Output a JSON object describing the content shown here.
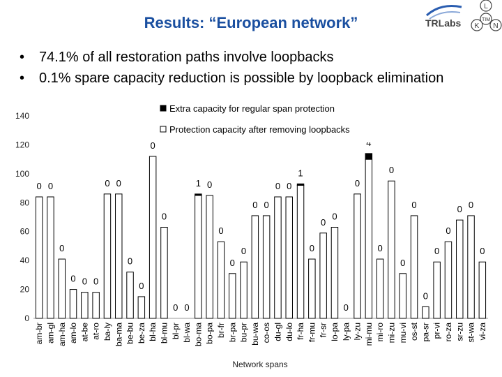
{
  "title": "Results: “European network”",
  "logo": {
    "name": "TRLabs",
    "seal_letters": [
      "L",
      "TIM",
      "K",
      "N"
    ]
  },
  "bullets": [
    "74.1% of all restoration paths involve loopbacks",
    "0.1% spare capacity reduction is possible by loopback elimination"
  ],
  "chart_data": {
    "type": "bar",
    "xlabel": "Network spans",
    "ylabel": "",
    "ylim": [
      0,
      140
    ],
    "yticks": [
      0,
      20,
      40,
      60,
      80,
      100,
      120,
      140
    ],
    "grid": false,
    "legend_placement": "top",
    "colors": {
      "extra": "#000000",
      "protection_fill": "#ffffff",
      "protection_edge": "#000000"
    },
    "categories": [
      "am-br",
      "am-gl",
      "am-ha",
      "am-lo",
      "at-be",
      "at-ro",
      "ba-ly",
      "ba-ma",
      "be-bu",
      "be-za",
      "bl-ha",
      "bl-mu",
      "bl-pr",
      "bl-wa",
      "bo-ma",
      "bo-pa",
      "br-fr",
      "br-pa",
      "bu-pr",
      "bu-wa",
      "co-os",
      "du-gl",
      "du-lo",
      "fr-ha",
      "fr-mu",
      "fr-sr",
      "lo-pa",
      "ly-pa",
      "ly-zu",
      "mi-mu",
      "mi-ro",
      "mi-zu",
      "mu-vi",
      "os-st",
      "pa-sr",
      "pr-vi",
      "ro-za",
      "sr-zu",
      "st-wa",
      "vi-za"
    ],
    "series": [
      {
        "name": "Extra capacity for regular span protection",
        "values": [
          0,
          0,
          0,
          0,
          0,
          0,
          0,
          0,
          0,
          0,
          0,
          0,
          0,
          0,
          1,
          0,
          0,
          0,
          0,
          0,
          0,
          0,
          0,
          1,
          0,
          0,
          0,
          0,
          0,
          4,
          0,
          0,
          0,
          0,
          0,
          0,
          0,
          0,
          0,
          0
        ]
      },
      {
        "name": "Protection capacity after removing loopbacks",
        "values": [
          84,
          84,
          41,
          20,
          18,
          18,
          86,
          86,
          32,
          15,
          112,
          63,
          0,
          0,
          85,
          85,
          53,
          31,
          39,
          71,
          71,
          84,
          84,
          92,
          41,
          59,
          63,
          0,
          86,
          110,
          41,
          95,
          31,
          71,
          8,
          39,
          53,
          68,
          71,
          39
        ]
      }
    ],
    "data_labels": [
      "0",
      "0",
      "0",
      "0",
      "0",
      "0",
      "0",
      "0",
      "0",
      "0",
      "0",
      "0",
      "0",
      "0",
      "1",
      "0",
      "0",
      "0",
      "0",
      "0",
      "0",
      "0",
      "0",
      "1",
      "0",
      "0",
      "0",
      "0",
      "0",
      "4",
      "0",
      "0",
      "0",
      "0",
      "0",
      "0",
      "0",
      "0",
      "0",
      "0"
    ]
  }
}
